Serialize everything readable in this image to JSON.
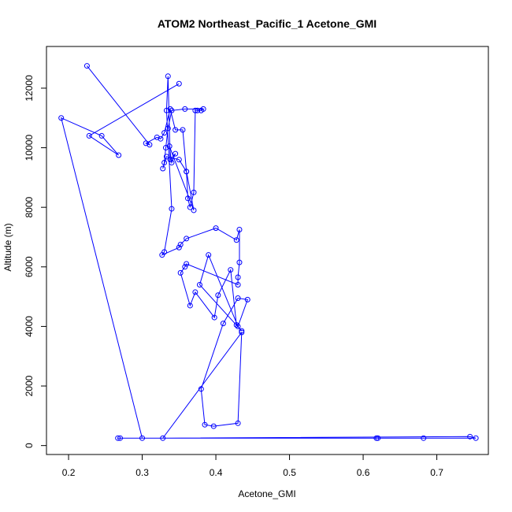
{
  "chart_data": {
    "type": "line",
    "title": "ATOM2 Northeast_Pacific_1 Acetone_GMI",
    "xlabel": "Acetone_GMI",
    "ylabel": "Altitude (m)",
    "xlim": [
      0.17,
      0.77
    ],
    "ylim": [
      -300,
      13400
    ],
    "xticks": [
      0.2,
      0.3,
      0.4,
      0.5,
      0.6,
      0.7
    ],
    "xtick_labels": [
      "0.2",
      "0.3",
      "0.4",
      "0.5",
      "0.6",
      "0.7"
    ],
    "yticks": [
      0,
      2000,
      4000,
      6000,
      8000,
      10000,
      12000
    ],
    "ytick_labels": [
      "0",
      "2000",
      "4000",
      "6000",
      "8000",
      "10000",
      "12000"
    ],
    "grid": false,
    "color": "#0000ff",
    "x": [
      0.225,
      0.31,
      0.305,
      0.32,
      0.325,
      0.33,
      0.338,
      0.345,
      0.355,
      0.36,
      0.362,
      0.365,
      0.37,
      0.372,
      0.375,
      0.38,
      0.383,
      0.358,
      0.34,
      0.335,
      0.332,
      0.33,
      0.328,
      0.333,
      0.35,
      0.36,
      0.37,
      0.337,
      0.34,
      0.345,
      0.338,
      0.335,
      0.333,
      0.34,
      0.33,
      0.327,
      0.35,
      0.352,
      0.36,
      0.4,
      0.428,
      0.432,
      0.432,
      0.43,
      0.43,
      0.36,
      0.358,
      0.352,
      0.365,
      0.372,
      0.398,
      0.403,
      0.42,
      0.428,
      0.435,
      0.378,
      0.39,
      0.43,
      0.443,
      0.43,
      0.41,
      0.38,
      0.385,
      0.397,
      0.43,
      0.435,
      0.328,
      0.745,
      0.753,
      0.682,
      0.62,
      0.618,
      0.27,
      0.267,
      0.3,
      0.19,
      0.245,
      0.268,
      0.228,
      0.35
    ],
    "y": [
      12750,
      10100,
      10150,
      10350,
      10300,
      10500,
      11300,
      10600,
      10600,
      9200,
      8300,
      8000,
      8500,
      11250,
      11250,
      11250,
      11300,
      11300,
      11250,
      10650,
      10000,
      9500,
      9300,
      9700,
      9600,
      9200,
      7900,
      10050,
      9500,
      9800,
      9600,
      12400,
      11250,
      7950,
      6500,
      6400,
      6650,
      6750,
      6950,
      7300,
      6900,
      7250,
      6150,
      5650,
      5400,
      6100,
      6000,
      5800,
      4700,
      5150,
      4300,
      5050,
      5900,
      4050,
      3850,
      5400,
      6400,
      4000,
      4900,
      4950,
      4100,
      1900,
      700,
      650,
      750,
      3800,
      250,
      300,
      250,
      250,
      250,
      250,
      250,
      250,
      250,
      11000,
      10400,
      9750,
      10400,
      12150
    ]
  }
}
